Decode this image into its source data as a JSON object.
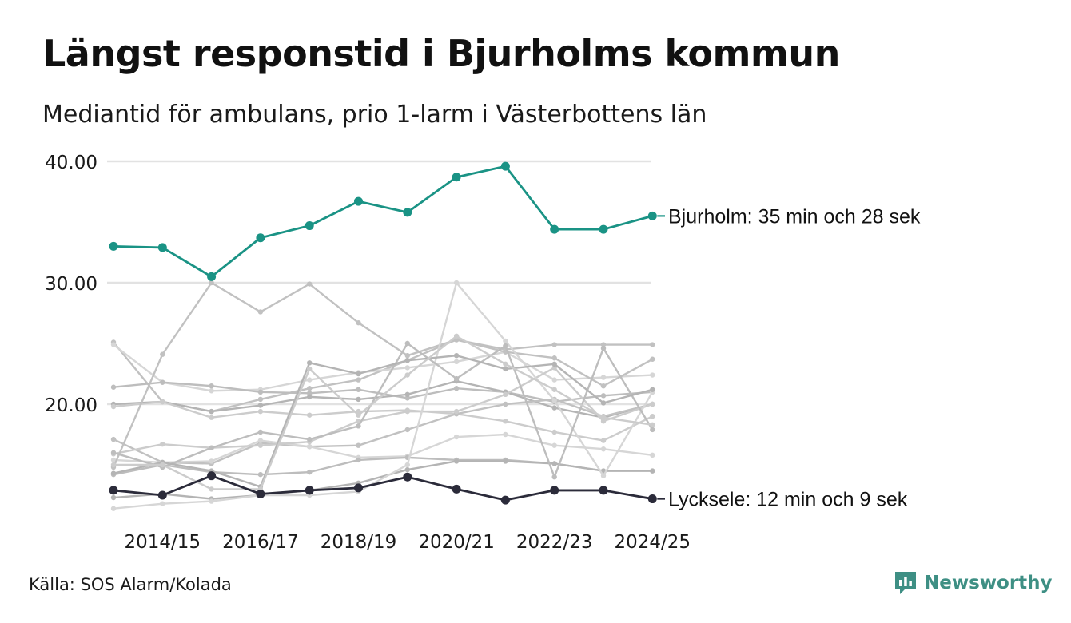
{
  "title": "Längst responstid i Bjurholms kommun",
  "subtitle": "Mediantid för ambulans, prio 1-larm i Västerbottens län",
  "source": "Källa: SOS Alarm/Kolada",
  "brand": "Newsworthy",
  "colors": {
    "highlight": "#1a9385",
    "low": "#2b2b3a",
    "others": [
      "#b4b4b4",
      "#cccccc",
      "#c1c1c1",
      "#d6d6d6",
      "#bdbdbd"
    ],
    "grid": "#e2e2e2",
    "brand": "#3e8f84"
  },
  "chart_data": {
    "type": "line",
    "x": [
      "2013/14",
      "2014/15",
      "2015/16",
      "2016/17",
      "2017/18",
      "2018/19",
      "2019/20",
      "2020/21",
      "2021/22",
      "2022/23",
      "2023/24",
      "2024/25"
    ],
    "x_tick_labels": [
      "2014/15",
      "2016/17",
      "2018/19",
      "2020/21",
      "2022/23",
      "2024/25"
    ],
    "y_ticks": [
      20,
      30,
      40
    ],
    "y_tick_labels": [
      "20.00",
      "30.00",
      "40.00"
    ],
    "ylim": [
      12.5,
      41
    ],
    "grid": "horizontal",
    "series": [
      {
        "name": "Bjurholm",
        "label": "Bjurholm: 35 min och 28 sek",
        "highlight": "teal",
        "values": [
          33.0,
          32.9,
          30.5,
          33.7,
          34.7,
          36.7,
          35.8,
          38.7,
          39.6,
          34.4,
          34.4,
          35.5
        ]
      },
      {
        "name": "Lycksele",
        "label": "Lycksele: 12 min och 9 sek",
        "highlight": "dark",
        "values": [
          12.9,
          12.5,
          14.1,
          12.6,
          12.9,
          13.1,
          14.0,
          13.0,
          12.1,
          12.9,
          12.9,
          12.2
        ]
      },
      {
        "values": [
          25.1,
          20.2,
          19.4,
          20.4,
          21.3,
          22.0,
          23.6,
          25.3,
          24.5,
          24.9,
          24.9,
          24.9
        ]
      },
      {
        "values": [
          24.9,
          21.8,
          21.1,
          21.2,
          22.0,
          22.6,
          23.0,
          23.5,
          24.3,
          22.0,
          22.2,
          22.4
        ]
      },
      {
        "values": [
          21.4,
          21.8,
          21.5,
          21.0,
          20.9,
          21.2,
          20.5,
          21.3,
          21.0,
          20.2,
          20.7,
          21.0
        ]
      },
      {
        "values": [
          20.0,
          20.2,
          19.4,
          19.9,
          20.6,
          20.4,
          20.8,
          21.9,
          21.0,
          19.7,
          18.9,
          20.0
        ]
      },
      {
        "values": [
          19.8,
          20.2,
          18.9,
          19.4,
          19.1,
          19.4,
          19.5,
          19.2,
          18.6,
          17.7,
          17.0,
          19.0
        ]
      },
      {
        "values": [
          17.1,
          15.2,
          15.1,
          16.8,
          16.5,
          16.6,
          17.9,
          19.2,
          20.0,
          20.4,
          19.0,
          20.0
        ]
      },
      {
        "values": [
          15.4,
          15.2,
          15.3,
          17.0,
          16.5,
          15.6,
          15.7,
          17.3,
          17.5,
          16.6,
          16.3,
          15.8
        ]
      },
      {
        "values": [
          14.2,
          15.0,
          14.4,
          14.2,
          14.4,
          15.4,
          15.6,
          15.4,
          15.4,
          15.1,
          14.5,
          14.5
        ]
      },
      {
        "values": [
          12.3,
          12.6,
          12.2,
          12.5,
          12.9,
          13.5,
          14.6,
          15.3,
          15.3,
          15.1,
          14.5,
          14.5
        ]
      },
      {
        "values": [
          15.9,
          16.7,
          16.4,
          16.6,
          16.9,
          18.6,
          19.4,
          19.4,
          20.8,
          23.0,
          18.6,
          20.0
        ]
      },
      {
        "values": [
          14.8,
          24.1,
          30.0,
          27.6,
          29.9,
          26.7,
          24.0,
          25.3,
          24.3,
          23.8,
          21.5,
          23.7
        ]
      },
      {
        "values": [
          11.4,
          11.8,
          12.0,
          12.5,
          12.5,
          12.8,
          15.0,
          30.0,
          25.2,
          20.3,
          14.1,
          21.0
        ]
      },
      {
        "values": [
          16.0,
          14.8,
          16.4,
          17.7,
          17.1,
          18.2,
          25.0,
          22.1,
          24.8,
          14.0,
          24.6,
          17.9
        ]
      },
      {
        "values": [
          14.3,
          15.2,
          14.5,
          13.2,
          23.4,
          22.5,
          23.6,
          24.0,
          22.9,
          23.3,
          20.1,
          21.2
        ]
      },
      {
        "values": [
          15.0,
          15.0,
          13.0,
          13.0,
          22.9,
          19.1,
          22.4,
          25.6,
          23.3,
          21.2,
          18.9,
          18.3
        ]
      }
    ]
  }
}
